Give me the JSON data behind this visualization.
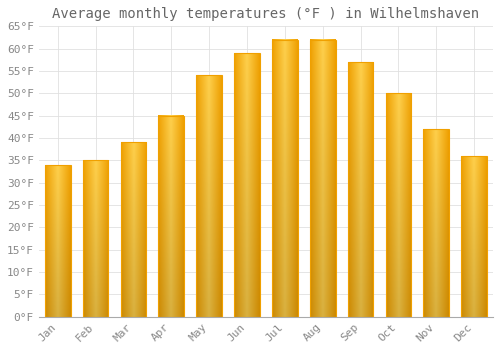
{
  "title": "Average monthly temperatures (°F ) in Wilhelmshaven",
  "months": [
    "Jan",
    "Feb",
    "Mar",
    "Apr",
    "May",
    "Jun",
    "Jul",
    "Aug",
    "Sep",
    "Oct",
    "Nov",
    "Dec"
  ],
  "values": [
    34,
    35,
    39,
    45,
    54,
    59,
    62,
    62,
    57,
    50,
    42,
    36
  ],
  "bar_color_center": "#FFD04C",
  "bar_color_edge": "#F0A000",
  "background_color": "#FFFFFF",
  "grid_color": "#E0E0E0",
  "text_color": "#888888",
  "title_color": "#666666",
  "ylim": [
    0,
    65
  ],
  "yticks": [
    0,
    5,
    10,
    15,
    20,
    25,
    30,
    35,
    40,
    45,
    50,
    55,
    60,
    65
  ],
  "title_fontsize": 10,
  "tick_fontsize": 8,
  "bar_width": 0.68
}
